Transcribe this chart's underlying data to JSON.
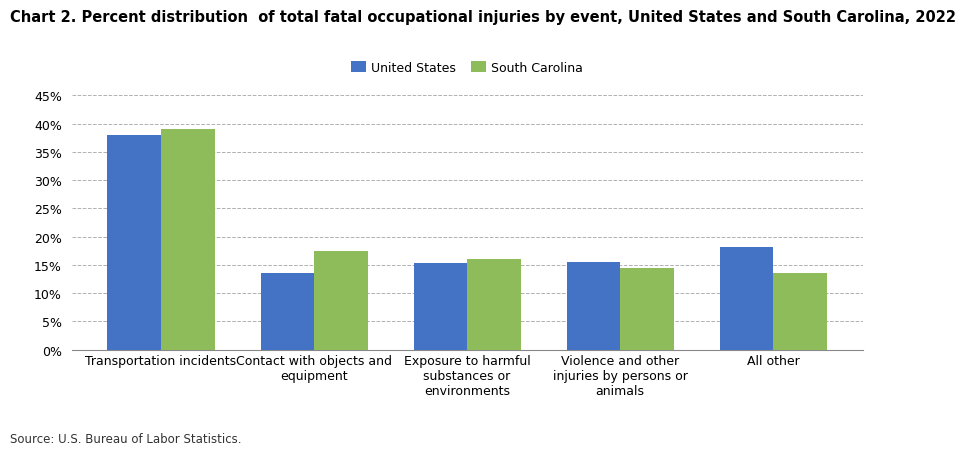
{
  "title": "Chart 2. Percent distribution  of total fatal occupational injuries by event, United States and South Carolina, 2022",
  "categories": [
    "Transportation incidents",
    "Contact with objects and\nequipment",
    "Exposure to harmful\nsubstances or\nenvironments",
    "Violence and other\ninjuries by persons or\nanimals",
    "All other"
  ],
  "us_values": [
    38.0,
    13.5,
    15.3,
    15.5,
    18.2
  ],
  "sc_values": [
    39.0,
    17.5,
    16.0,
    14.5,
    13.5
  ],
  "us_color": "#4472C4",
  "sc_color": "#8FBC5A",
  "legend_labels": [
    "United States",
    "South Carolina"
  ],
  "ylim": [
    0,
    45
  ],
  "yticks": [
    0,
    5,
    10,
    15,
    20,
    25,
    30,
    35,
    40,
    45
  ],
  "source": "Source: U.S. Bureau of Labor Statistics.",
  "background_color": "#ffffff",
  "title_fontsize": 10.5,
  "axis_fontsize": 9,
  "legend_fontsize": 9,
  "source_fontsize": 8.5
}
